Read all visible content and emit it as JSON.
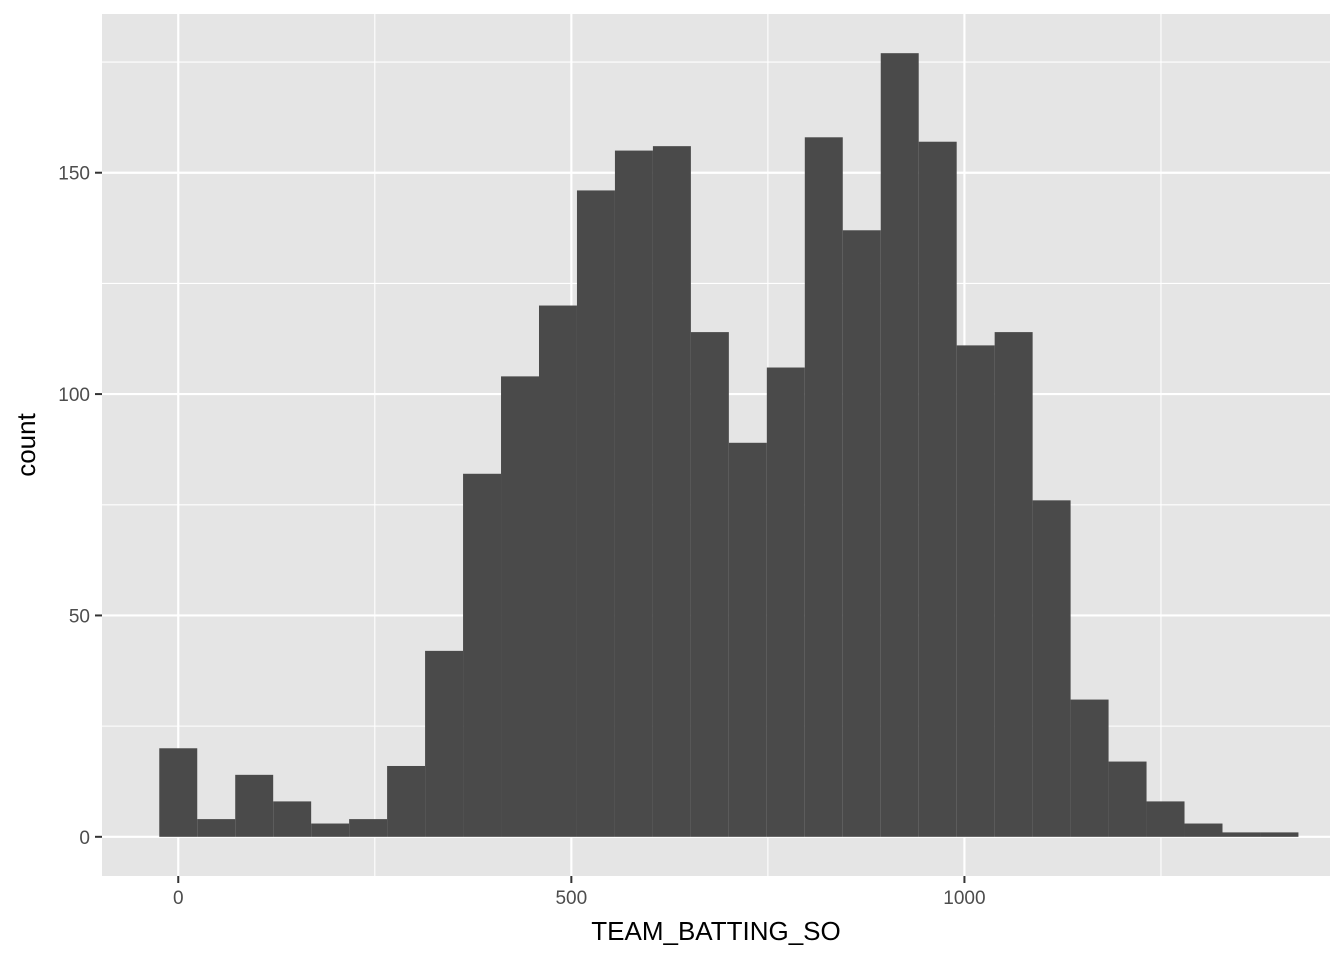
{
  "chart_data": {
    "type": "bar",
    "subtype": "histogram",
    "title": "",
    "xlabel": "TEAM_BATTING_SO",
    "ylabel": "count",
    "bin_width": 48.3,
    "bin_starts": [
      -24.15,
      24.15,
      72.45,
      120.75,
      169.05,
      217.35,
      265.65,
      313.95,
      362.25,
      410.55,
      458.85,
      507.15,
      555.45,
      603.75,
      652.05,
      700.35,
      748.65,
      796.95,
      845.25,
      893.55,
      941.85,
      990.15,
      1038.45,
      1086.75,
      1135.05,
      1183.35,
      1231.65,
      1279.95,
      1328.25,
      1376.55
    ],
    "values": [
      20,
      4,
      14,
      8,
      3,
      4,
      16,
      42,
      82,
      104,
      120,
      146,
      155,
      156,
      114,
      89,
      106,
      158,
      137,
      177,
      157,
      111,
      114,
      76,
      31,
      17,
      8,
      3,
      1,
      1
    ],
    "xlim": [
      -97,
      1465
    ],
    "ylim": [
      -8.85,
      185.85
    ],
    "x_ticks": [
      0,
      500,
      1000
    ],
    "x_tick_labels": [
      "0",
      "500",
      "1000"
    ],
    "x_minor_ticks": [
      250,
      750,
      1250
    ],
    "y_ticks": [
      0,
      50,
      100,
      150
    ],
    "y_tick_labels": [
      "0",
      "50",
      "100",
      "150"
    ],
    "y_minor_ticks": [
      25,
      75,
      125,
      175
    ],
    "grid": true,
    "legend": "none",
    "colors": {
      "panel": "#E5E5E5",
      "grid": "#FFFFFF",
      "bar": "#4A4A4A",
      "tick_label": "#4D4D4D",
      "tick": "#333333"
    }
  }
}
